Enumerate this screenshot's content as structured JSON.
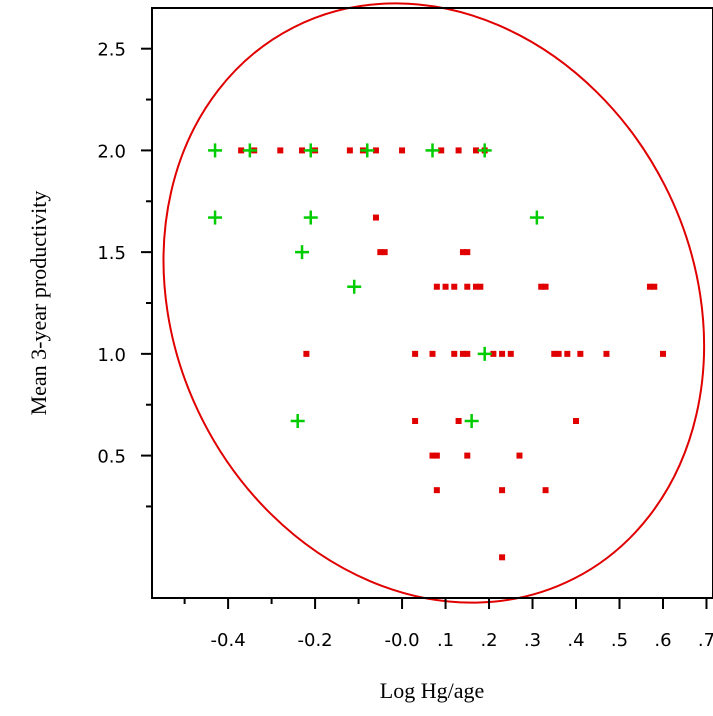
{
  "chart_data": {
    "type": "scatter",
    "title": "",
    "xlabel": "Log Hg/age",
    "ylabel": "Mean 3-year productivity",
    "xlim": [
      -0.575,
      0.715
    ],
    "ylim": [
      -0.2,
      2.7
    ],
    "x_ticks": [
      {
        "value": -0.4,
        "label": "-0.4"
      },
      {
        "value": -0.2,
        "label": "-0.2"
      },
      {
        "value": 0.0,
        "label": "-0.0"
      },
      {
        "value": 0.1,
        "label": ".1"
      },
      {
        "value": 0.2,
        "label": ".2"
      },
      {
        "value": 0.3,
        "label": ".3"
      },
      {
        "value": 0.4,
        "label": ".4"
      },
      {
        "value": 0.5,
        "label": ".5"
      },
      {
        "value": 0.6,
        "label": ".6"
      },
      {
        "value": 0.7,
        "label": ".7"
      }
    ],
    "x_minor_ticks": [
      -0.5,
      -0.3,
      -0.1
    ],
    "y_ticks": [
      {
        "value": 0.5,
        "label": "0.5"
      },
      {
        "value": 1.0,
        "label": "1.0"
      },
      {
        "value": 1.5,
        "label": "1.5"
      },
      {
        "value": 2.0,
        "label": "2.0"
      },
      {
        "value": 2.5,
        "label": "2.5"
      }
    ],
    "y_minor_ticks": [
      0.25,
      0.75,
      1.25,
      1.75,
      2.25
    ],
    "grid": false,
    "colors": {
      "red": "#e00000",
      "green": "#00cc00",
      "ellipse": "#e00000",
      "axis": "#000000"
    },
    "ellipse": {
      "center": [
        0.073,
        1.25
      ],
      "rx_data": 0.596,
      "ry_data": 1.52,
      "rotation_deg": -27
    },
    "series": [
      {
        "marker": "square",
        "color": "#e00000",
        "points": [
          [
            -0.37,
            2.0
          ],
          [
            -0.34,
            2.0
          ],
          [
            -0.28,
            2.0
          ],
          [
            -0.23,
            2.0
          ],
          [
            -0.2,
            2.0
          ],
          [
            -0.12,
            2.0
          ],
          [
            -0.09,
            2.0
          ],
          [
            -0.06,
            2.0
          ],
          [
            0.0,
            2.0
          ],
          [
            0.09,
            2.0
          ],
          [
            0.13,
            2.0
          ],
          [
            0.17,
            2.0
          ],
          [
            0.19,
            2.0
          ],
          [
            -0.06,
            1.67
          ],
          [
            -0.05,
            1.5
          ],
          [
            -0.04,
            1.5
          ],
          [
            0.14,
            1.5
          ],
          [
            0.15,
            1.5
          ],
          [
            0.08,
            1.33
          ],
          [
            0.1,
            1.33
          ],
          [
            0.12,
            1.33
          ],
          [
            0.15,
            1.33
          ],
          [
            0.17,
            1.33
          ],
          [
            0.18,
            1.33
          ],
          [
            0.32,
            1.33
          ],
          [
            0.33,
            1.33
          ],
          [
            0.57,
            1.33
          ],
          [
            0.58,
            1.33
          ],
          [
            -0.22,
            1.0
          ],
          [
            0.03,
            1.0
          ],
          [
            0.07,
            1.0
          ],
          [
            0.12,
            1.0
          ],
          [
            0.14,
            1.0
          ],
          [
            0.15,
            1.0
          ],
          [
            0.21,
            1.0
          ],
          [
            0.23,
            1.0
          ],
          [
            0.25,
            1.0
          ],
          [
            0.35,
            1.0
          ],
          [
            0.36,
            1.0
          ],
          [
            0.38,
            1.0
          ],
          [
            0.41,
            1.0
          ],
          [
            0.47,
            1.0
          ],
          [
            0.6,
            1.0
          ],
          [
            0.03,
            0.67
          ],
          [
            0.13,
            0.67
          ],
          [
            0.4,
            0.67
          ],
          [
            0.07,
            0.5
          ],
          [
            0.08,
            0.5
          ],
          [
            0.15,
            0.5
          ],
          [
            0.27,
            0.5
          ],
          [
            0.08,
            0.33
          ],
          [
            0.23,
            0.33
          ],
          [
            0.33,
            0.33
          ],
          [
            0.23,
            0.0
          ]
        ]
      },
      {
        "marker": "plus",
        "color": "#00cc00",
        "points": [
          [
            -0.43,
            2.0
          ],
          [
            -0.35,
            2.0
          ],
          [
            -0.21,
            2.0
          ],
          [
            -0.08,
            2.0
          ],
          [
            0.07,
            2.0
          ],
          [
            0.19,
            2.0
          ],
          [
            -0.43,
            1.67
          ],
          [
            -0.21,
            1.67
          ],
          [
            0.31,
            1.67
          ],
          [
            -0.23,
            1.5
          ],
          [
            -0.11,
            1.33
          ],
          [
            0.19,
            1.0
          ],
          [
            -0.24,
            0.67
          ],
          [
            0.16,
            0.67
          ]
        ]
      }
    ]
  }
}
